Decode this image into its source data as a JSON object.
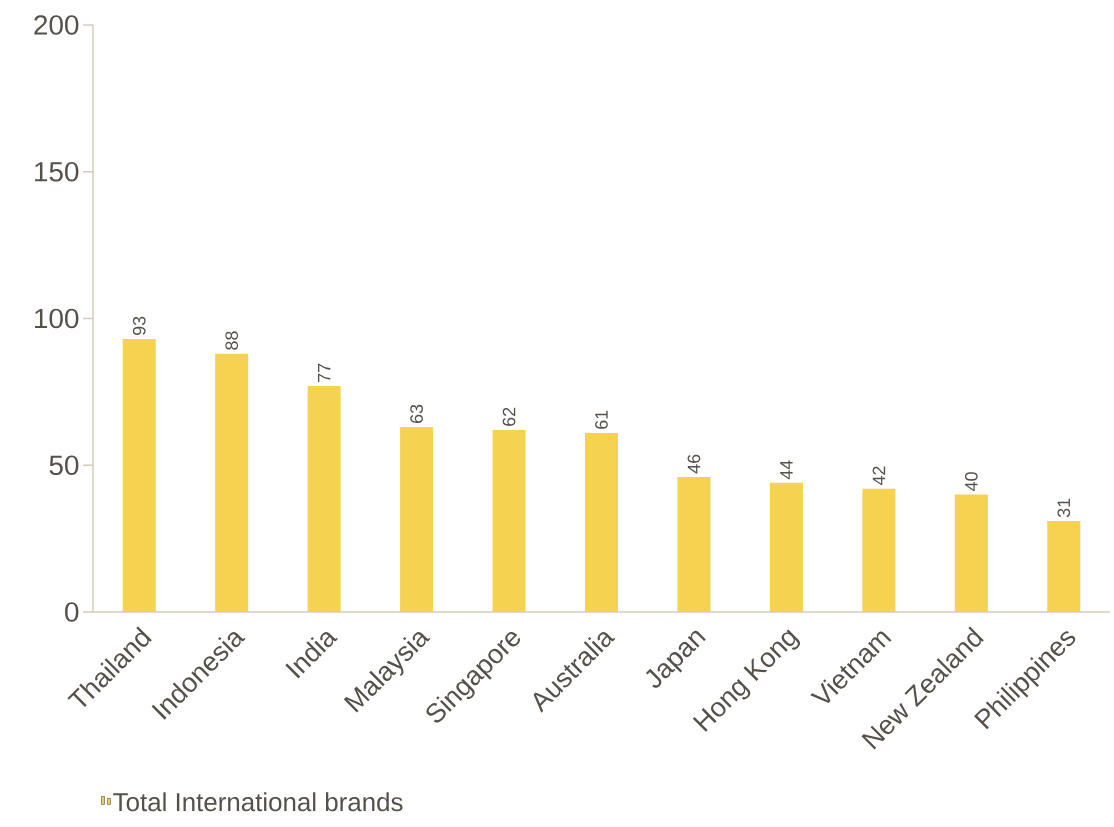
{
  "chart_data": {
    "type": "bar",
    "categories": [
      "Thailand",
      "Indonesia",
      "India",
      "Malaysia",
      "Singapore",
      "Australia",
      "Japan",
      "Hong Kong",
      "Vietnam",
      "New Zealand",
      "Philippines"
    ],
    "series": [
      {
        "name": "Total International brands",
        "color": "#f5d24f",
        "values": [
          93,
          88,
          77,
          63,
          62,
          61,
          46,
          44,
          42,
          40,
          31
        ]
      }
    ],
    "ylim": [
      0,
      200
    ],
    "yticks": [
      0,
      50,
      100,
      150,
      200
    ],
    "data_labels": true,
    "legend": "bottom",
    "grid": false
  }
}
